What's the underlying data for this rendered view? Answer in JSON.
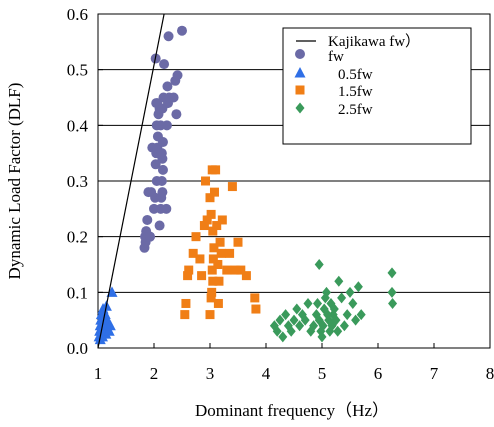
{
  "chart_data": {
    "type": "scatter",
    "xlabel": "Dominant frequency（Hz）",
    "ylabel": "Dynamic Load Factor (DLF)",
    "xlim": [
      1,
      8
    ],
    "ylim": [
      0,
      0.6
    ],
    "x_ticks": [
      "1",
      "2",
      "3",
      "4",
      "5",
      "6",
      "7",
      "8"
    ],
    "y_ticks": [
      "0.0",
      "0.1",
      "0.2",
      "0.3",
      "0.4",
      "0.5",
      "0.6"
    ],
    "grid": "horizontal",
    "legend_position": "top-right",
    "line": {
      "name": "Kajikawa  fw）",
      "color": "#000000",
      "points": [
        [
          1.0,
          0.0
        ],
        [
          2.2,
          0.61
        ]
      ]
    },
    "series": [
      {
        "name": "fw",
        "marker": "circle",
        "color": "#6b6aa6",
        "points": [
          [
            1.83,
            0.18
          ],
          [
            1.85,
            0.19
          ],
          [
            1.84,
            0.2
          ],
          [
            1.86,
            0.21
          ],
          [
            1.88,
            0.23
          ],
          [
            1.9,
            0.28
          ],
          [
            1.95,
            0.28
          ],
          [
            1.97,
            0.36
          ],
          [
            1.93,
            0.2
          ],
          [
            2.0,
            0.25
          ],
          [
            2.02,
            0.27
          ],
          [
            2.05,
            0.3
          ],
          [
            2.03,
            0.33
          ],
          [
            2.04,
            0.35
          ],
          [
            2.06,
            0.36
          ],
          [
            2.07,
            0.38
          ],
          [
            2.05,
            0.4
          ],
          [
            2.08,
            0.42
          ],
          [
            2.1,
            0.43
          ],
          [
            2.04,
            0.44
          ],
          [
            2.06,
            0.44
          ],
          [
            2.03,
            0.52
          ],
          [
            2.1,
            0.22
          ],
          [
            2.12,
            0.25
          ],
          [
            2.13,
            0.27
          ],
          [
            2.15,
            0.28
          ],
          [
            2.14,
            0.3
          ],
          [
            2.16,
            0.32
          ],
          [
            2.15,
            0.34
          ],
          [
            2.14,
            0.35
          ],
          [
            2.16,
            0.37
          ],
          [
            2.12,
            0.4
          ],
          [
            2.15,
            0.43
          ],
          [
            2.17,
            0.45
          ],
          [
            2.18,
            0.51
          ],
          [
            2.22,
            0.25
          ],
          [
            2.23,
            0.4
          ],
          [
            2.25,
            0.44
          ],
          [
            2.27,
            0.45
          ],
          [
            2.24,
            0.47
          ],
          [
            2.26,
            0.56
          ],
          [
            2.35,
            0.45
          ],
          [
            2.38,
            0.48
          ],
          [
            2.4,
            0.42
          ],
          [
            2.42,
            0.49
          ],
          [
            2.5,
            0.57
          ]
        ]
      },
      {
        "name": "0.5fw",
        "marker": "triangle",
        "color": "#2f6fe6",
        "points": [
          [
            1.02,
            0.02
          ],
          [
            1.03,
            0.03
          ],
          [
            1.04,
            0.04
          ],
          [
            1.05,
            0.05
          ],
          [
            1.06,
            0.06
          ],
          [
            1.07,
            0.03
          ],
          [
            1.08,
            0.02
          ],
          [
            1.09,
            0.07
          ],
          [
            1.1,
            0.04
          ],
          [
            1.11,
            0.05
          ],
          [
            1.04,
            0.015
          ],
          [
            1.06,
            0.035
          ],
          [
            1.08,
            0.055
          ],
          [
            1.1,
            0.065
          ],
          [
            1.12,
            0.045
          ],
          [
            1.14,
            0.025
          ],
          [
            1.15,
            0.075
          ],
          [
            1.17,
            0.035
          ],
          [
            1.19,
            0.045
          ],
          [
            1.2,
            0.03
          ],
          [
            1.13,
            0.06
          ],
          [
            1.16,
            0.05
          ],
          [
            1.22,
            0.04
          ],
          [
            1.25,
            0.1
          ]
        ]
      },
      {
        "name": "1.5fw",
        "marker": "square",
        "color": "#f07e16",
        "points": [
          [
            2.55,
            0.06
          ],
          [
            2.57,
            0.08
          ],
          [
            2.6,
            0.13
          ],
          [
            2.62,
            0.14
          ],
          [
            2.7,
            0.17
          ],
          [
            2.75,
            0.2
          ],
          [
            2.82,
            0.16
          ],
          [
            2.85,
            0.13
          ],
          [
            2.9,
            0.22
          ],
          [
            2.92,
            0.3
          ],
          [
            2.95,
            0.23
          ],
          [
            3.0,
            0.06
          ],
          [
            3.02,
            0.09
          ],
          [
            3.03,
            0.1
          ],
          [
            3.05,
            0.12
          ],
          [
            3.04,
            0.14
          ],
          [
            3.06,
            0.16
          ],
          [
            3.07,
            0.18
          ],
          [
            3.05,
            0.21
          ],
          [
            3.02,
            0.24
          ],
          [
            3.0,
            0.27
          ],
          [
            3.04,
            0.32
          ],
          [
            3.1,
            0.32
          ],
          [
            3.08,
            0.28
          ],
          [
            3.12,
            0.22
          ],
          [
            3.15,
            0.08
          ],
          [
            3.16,
            0.12
          ],
          [
            3.14,
            0.15
          ],
          [
            3.18,
            0.19
          ],
          [
            3.2,
            0.17
          ],
          [
            3.22,
            0.23
          ],
          [
            3.3,
            0.14
          ],
          [
            3.35,
            0.17
          ],
          [
            3.4,
            0.29
          ],
          [
            3.45,
            0.14
          ],
          [
            3.5,
            0.19
          ],
          [
            3.55,
            0.14
          ],
          [
            3.65,
            0.13
          ],
          [
            3.8,
            0.09
          ],
          [
            3.82,
            0.07
          ]
        ]
      },
      {
        "name": "2.5fw",
        "marker": "diamond",
        "color": "#3a9a5b",
        "points": [
          [
            4.15,
            0.04
          ],
          [
            4.2,
            0.03
          ],
          [
            4.25,
            0.05
          ],
          [
            4.3,
            0.02
          ],
          [
            4.35,
            0.06
          ],
          [
            4.4,
            0.04
          ],
          [
            4.45,
            0.03
          ],
          [
            4.5,
            0.05
          ],
          [
            4.55,
            0.07
          ],
          [
            4.6,
            0.04
          ],
          [
            4.65,
            0.06
          ],
          [
            4.7,
            0.05
          ],
          [
            4.75,
            0.08
          ],
          [
            4.8,
            0.03
          ],
          [
            4.85,
            0.04
          ],
          [
            4.9,
            0.06
          ],
          [
            4.92,
            0.08
          ],
          [
            4.95,
            0.05
          ],
          [
            4.98,
            0.03
          ],
          [
            5.0,
            0.02
          ],
          [
            5.02,
            0.04
          ],
          [
            5.04,
            0.07
          ],
          [
            5.06,
            0.09
          ],
          [
            5.08,
            0.1
          ],
          [
            5.1,
            0.06
          ],
          [
            5.12,
            0.05
          ],
          [
            5.14,
            0.03
          ],
          [
            5.16,
            0.08
          ],
          [
            5.18,
            0.04
          ],
          [
            5.2,
            0.06
          ],
          [
            5.22,
            0.07
          ],
          [
            5.25,
            0.05
          ],
          [
            5.28,
            0.03
          ],
          [
            5.3,
            0.12
          ],
          [
            5.35,
            0.09
          ],
          [
            5.4,
            0.04
          ],
          [
            5.45,
            0.06
          ],
          [
            5.5,
            0.1
          ],
          [
            5.55,
            0.08
          ],
          [
            5.6,
            0.05
          ],
          [
            5.65,
            0.11
          ],
          [
            5.7,
            0.06
          ],
          [
            4.95,
            0.15
          ],
          [
            6.25,
            0.135
          ],
          [
            6.25,
            0.1
          ],
          [
            6.26,
            0.08
          ]
        ]
      }
    ]
  }
}
